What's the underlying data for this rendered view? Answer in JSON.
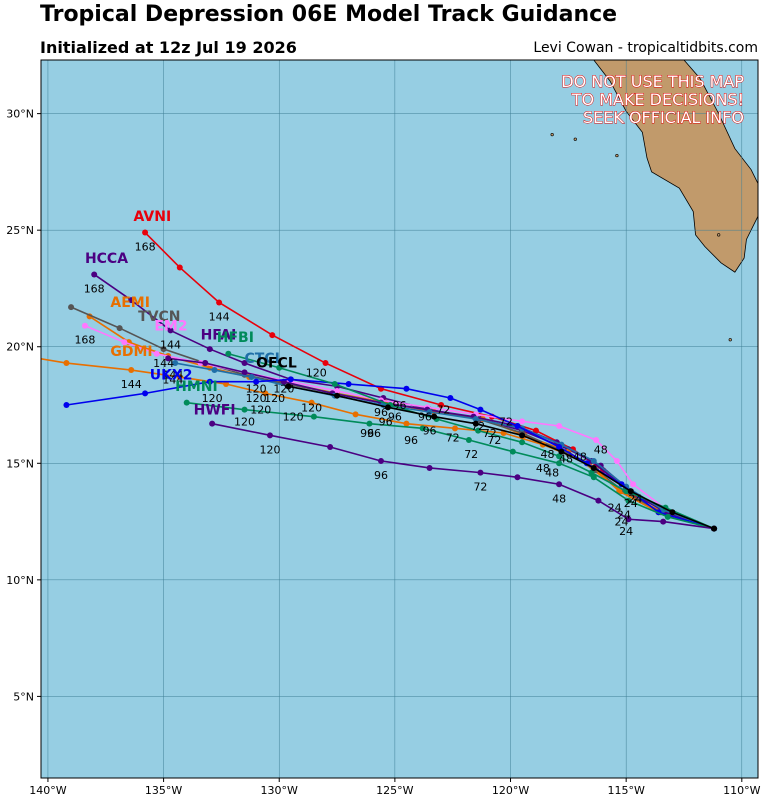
{
  "header": {
    "title": "Tropical Depression 06E Model Track Guidance",
    "subtitle": "Initialized at 12z Jul 19 2026",
    "credit": "Levi Cowan - tropicaltidbits.com"
  },
  "map": {
    "lon_range": [
      -140.3,
      -109.3
    ],
    "lat_range": [
      1.5,
      32.3
    ],
    "ocean_color": "#96cee3",
    "land_color": "#c19a6b",
    "grid": true,
    "lon_ticks": [
      {
        "v": -140,
        "t": "140°W"
      },
      {
        "v": -135,
        "t": "135°W"
      },
      {
        "v": -130,
        "t": "130°W"
      },
      {
        "v": -125,
        "t": "125°W"
      },
      {
        "v": -120,
        "t": "120°W"
      },
      {
        "v": -115,
        "t": "115°W"
      },
      {
        "v": -110,
        "t": "110°W"
      }
    ],
    "lat_ticks": [
      {
        "v": 5,
        "t": "5°N"
      },
      {
        "v": 10,
        "t": "10°N"
      },
      {
        "v": 15,
        "t": "15°N"
      },
      {
        "v": 20,
        "t": "20°N"
      },
      {
        "v": 25,
        "t": "25°N"
      },
      {
        "v": 30,
        "t": "30°N"
      }
    ],
    "warning": [
      "DO NOT USE THIS MAP",
      "TO MAKE DECISIONS!",
      "SEEK OFFICIAL INFO"
    ],
    "land": [
      {
        "name": "baja-california",
        "points": [
          [
            -115.6,
            32.3
          ],
          [
            -112.5,
            32.3
          ],
          [
            -111.8,
            31.5
          ],
          [
            -111.0,
            30.0
          ],
          [
            -110.3,
            28.5
          ],
          [
            -109.6,
            27.6
          ],
          [
            -109.3,
            27.0
          ],
          [
            -109.3,
            25.6
          ],
          [
            -109.8,
            24.6
          ],
          [
            -109.9,
            23.8
          ],
          [
            -110.3,
            23.2
          ],
          [
            -110.9,
            23.6
          ],
          [
            -111.6,
            24.3
          ],
          [
            -112.0,
            24.8
          ],
          [
            -112.1,
            25.8
          ],
          [
            -112.7,
            26.8
          ],
          [
            -113.9,
            27.5
          ],
          [
            -114.1,
            28.1
          ],
          [
            -114.3,
            29.2
          ],
          [
            -115.0,
            30.1
          ],
          [
            -115.7,
            31.4
          ],
          [
            -116.4,
            32.3
          ]
        ]
      }
    ],
    "islands": [
      [
        -117.2,
        28.9
      ],
      [
        -118.2,
        29.1
      ],
      [
        -115.4,
        28.2
      ],
      [
        -111.0,
        24.8
      ],
      [
        -110.5,
        20.3
      ]
    ]
  },
  "tracks": [
    {
      "model": "AVNI",
      "color": "#e8000b",
      "points": [
        [
          -111.2,
          12.2
        ],
        [
          -113.0,
          12.8
        ],
        [
          -114.6,
          13.6
        ],
        [
          -116.0,
          14.7
        ],
        [
          -117.3,
          15.6
        ],
        [
          -118.9,
          16.4
        ],
        [
          -120.8,
          17.0
        ],
        [
          -123.0,
          17.5
        ],
        [
          -125.6,
          18.2
        ],
        [
          -128.0,
          19.3
        ],
        [
          -130.3,
          20.5
        ],
        [
          -132.6,
          21.9
        ],
        [
          -134.3,
          23.4
        ],
        [
          -135.8,
          24.9
        ]
      ],
      "labels": [
        {
          "lon": -132.6,
          "lat": 21.3,
          "t": "144"
        },
        {
          "lon": -135.8,
          "lat": 24.3,
          "t": "168"
        }
      ],
      "name_at": [
        -136.3,
        25.4
      ]
    },
    {
      "model": "HCCA",
      "color": "#4b0082",
      "points": [
        [
          -111.2,
          12.2
        ],
        [
          -113.2,
          12.9
        ],
        [
          -114.8,
          13.8
        ],
        [
          -116.1,
          14.9
        ],
        [
          -117.5,
          15.6
        ],
        [
          -119.5,
          16.4
        ],
        [
          -121.3,
          16.9
        ],
        [
          -123.5,
          17.3
        ],
        [
          -125.5,
          17.8
        ],
        [
          -127.5,
          18.3
        ],
        [
          -129.5,
          18.6
        ],
        [
          -131.5,
          19.3
        ],
        [
          -133.0,
          19.9
        ],
        [
          -134.7,
          20.7
        ],
        [
          -136.4,
          22.0
        ],
        [
          -138.0,
          23.1
        ]
      ],
      "labels": [
        {
          "lon": -134.7,
          "lat": 20.1,
          "t": "144"
        },
        {
          "lon": -138.0,
          "lat": 22.5,
          "t": "168"
        }
      ],
      "name_at": [
        -138.4,
        23.6
      ]
    },
    {
      "model": "AEMI",
      "color": "#e86f00",
      "points": [
        [
          -111.2,
          12.2
        ],
        [
          -113.4,
          12.9
        ],
        [
          -115.2,
          13.8
        ],
        [
          -116.4,
          14.7
        ],
        [
          -117.5,
          15.5
        ],
        [
          -119.4,
          16.2
        ],
        [
          -121.2,
          16.9
        ],
        [
          -123.3,
          17.2
        ],
        [
          -125.4,
          17.6
        ],
        [
          -127.5,
          18.0
        ],
        [
          -129.5,
          18.4
        ],
        [
          -131.3,
          18.7
        ],
        [
          -133.0,
          19.1
        ],
        [
          -134.8,
          19.6
        ],
        [
          -136.5,
          20.2
        ],
        [
          -138.2,
          21.3
        ]
      ],
      "labels": [],
      "name_at": [
        -137.3,
        21.7
      ]
    },
    {
      "model": "TVCN",
      "color": "#555555",
      "points": [
        [
          -111.2,
          12.2
        ],
        [
          -113.5,
          12.9
        ],
        [
          -115.1,
          13.8
        ],
        [
          -116.3,
          14.7
        ],
        [
          -117.5,
          15.4
        ],
        [
          -119.5,
          16.3
        ],
        [
          -121.4,
          16.9
        ],
        [
          -123.5,
          17.3
        ],
        [
          -125.6,
          17.6
        ],
        [
          -127.6,
          18.0
        ],
        [
          -129.7,
          18.4
        ],
        [
          -131.5,
          18.8
        ],
        [
          -133.2,
          19.3
        ],
        [
          -135.0,
          19.9
        ],
        [
          -136.9,
          20.8
        ],
        [
          -139.0,
          21.7
        ]
      ],
      "labels": [
        {
          "lon": -135.0,
          "lat": 19.3,
          "t": "144"
        }
      ],
      "name_at": [
        -136.1,
        21.1
      ]
    },
    {
      "model": "EM2",
      "color": "#ff77ff",
      "points": [
        [
          -111.2,
          12.2
        ],
        [
          -113.1,
          12.9
        ],
        [
          -114.7,
          14.1
        ],
        [
          -115.4,
          15.1
        ],
        [
          -116.3,
          16.0
        ],
        [
          -117.9,
          16.6
        ],
        [
          -119.5,
          16.8
        ],
        [
          -121.5,
          17.1
        ],
        [
          -123.6,
          17.4
        ],
        [
          -125.6,
          17.7
        ],
        [
          -127.5,
          18.1
        ],
        [
          -129.5,
          18.5
        ],
        [
          -131.5,
          18.9
        ],
        [
          -133.4,
          19.3
        ],
        [
          -135.3,
          19.7
        ],
        [
          -136.7,
          20.2
        ],
        [
          -138.4,
          20.9
        ]
      ],
      "labels": [
        {
          "lon": -138.4,
          "lat": 20.3,
          "t": "168"
        }
      ],
      "name_at": [
        -135.4,
        20.7
      ]
    },
    {
      "model": "GDMI",
      "color": "#e86f00",
      "points": [
        [
          -111.2,
          12.2
        ],
        [
          -113.6,
          12.9
        ],
        [
          -115.3,
          13.8
        ],
        [
          -116.6,
          15.0
        ],
        [
          -118.6,
          15.8
        ],
        [
          -120.3,
          16.3
        ],
        [
          -122.4,
          16.5
        ],
        [
          -124.5,
          16.7
        ],
        [
          -126.7,
          17.1
        ],
        [
          -128.6,
          17.6
        ],
        [
          -130.6,
          18.0
        ],
        [
          -132.3,
          18.4
        ],
        [
          -134.3,
          18.7
        ],
        [
          -136.4,
          19.0
        ],
        [
          -139.2,
          19.3
        ],
        [
          -141.0,
          19.6
        ]
      ],
      "labels": [
        {
          "lon": -136.4,
          "lat": 18.4,
          "t": "144"
        }
      ],
      "name_at": [
        -137.3,
        19.6
      ]
    },
    {
      "model": "HFAI",
      "color": "#4b0082",
      "points": [
        [
          -111.2,
          12.2
        ],
        [
          -113.3,
          12.9
        ],
        [
          -115.0,
          13.9
        ],
        [
          -116.5,
          15.1
        ],
        [
          -118.0,
          15.9
        ],
        [
          -119.7,
          16.6
        ],
        [
          -121.6,
          17.0
        ],
        [
          -123.6,
          17.3
        ],
        [
          -125.6,
          17.6
        ],
        [
          -127.7,
          18.0
        ],
        [
          -129.8,
          18.5
        ],
        [
          -131.5,
          18.9
        ],
        [
          -133.2,
          19.3
        ],
        [
          -134.8,
          19.5
        ]
      ],
      "labels": [],
      "name_at": [
        -133.4,
        20.3
      ]
    },
    {
      "model": "CTCI",
      "color": "#1f6fa8",
      "points": [
        [
          -111.2,
          12.2
        ],
        [
          -113.4,
          13.0
        ],
        [
          -115.0,
          14.0
        ],
        [
          -116.4,
          15.1
        ],
        [
          -117.8,
          15.8
        ],
        [
          -119.5,
          16.5
        ],
        [
          -121.5,
          16.9
        ],
        [
          -123.5,
          17.2
        ],
        [
          -125.5,
          17.5
        ],
        [
          -127.6,
          17.9
        ],
        [
          -129.6,
          18.3
        ],
        [
          -131.2,
          18.7
        ],
        [
          -132.8,
          19.0
        ],
        [
          -134.5,
          19.3
        ]
      ],
      "labels": [],
      "name_at": [
        -131.5,
        19.3
      ]
    },
    {
      "model": "UKX2",
      "color": "#0000ee",
      "points": [
        [
          -111.2,
          12.2
        ],
        [
          -113.6,
          12.9
        ],
        [
          -115.2,
          14.1
        ],
        [
          -116.7,
          15.0
        ],
        [
          -117.9,
          15.7
        ],
        [
          -119.7,
          16.6
        ],
        [
          -121.3,
          17.3
        ],
        [
          -122.6,
          17.8
        ],
        [
          -124.5,
          18.2
        ],
        [
          -127.0,
          18.4
        ],
        [
          -129.5,
          18.6
        ],
        [
          -131.0,
          18.5
        ],
        [
          -133.0,
          18.5
        ],
        [
          -135.8,
          18.0
        ],
        [
          -139.2,
          17.5
        ]
      ],
      "labels": [],
      "name_at": [
        -135.6,
        18.6
      ]
    },
    {
      "model": "HMNI",
      "color": "#008b5a",
      "points": [
        [
          -111.2,
          12.2
        ],
        [
          -113.2,
          12.7
        ],
        [
          -114.9,
          13.4
        ],
        [
          -116.4,
          14.4
        ],
        [
          -117.9,
          15.0
        ],
        [
          -119.9,
          15.5
        ],
        [
          -121.8,
          16.0
        ],
        [
          -123.8,
          16.5
        ],
        [
          -126.1,
          16.7
        ],
        [
          -128.5,
          17.0
        ],
        [
          -131.5,
          17.3
        ],
        [
          -134.0,
          17.6
        ]
      ],
      "labels": [
        {
          "lon": -131.5,
          "lat": 16.8,
          "t": "120"
        }
      ],
      "name_at": [
        -134.5,
        18.1
      ]
    },
    {
      "model": "HFBI",
      "color": "#008b5a",
      "points": [
        [
          -111.2,
          12.2
        ],
        [
          -113.3,
          13.1
        ],
        [
          -115.0,
          13.8
        ],
        [
          -116.5,
          14.6
        ],
        [
          -117.9,
          15.3
        ],
        [
          -119.5,
          15.9
        ],
        [
          -121.4,
          16.4
        ],
        [
          -123.2,
          16.9
        ],
        [
          -125.2,
          17.5
        ],
        [
          -127.6,
          18.4
        ],
        [
          -130.0,
          19.1
        ],
        [
          -132.2,
          19.7
        ]
      ],
      "labels": [
        {
          "lon": -128.4,
          "lat": 18.9,
          "t": "120"
        }
      ],
      "name_at": [
        -132.7,
        20.2
      ]
    },
    {
      "model": "HWFI",
      "color": "#4b0082",
      "points": [
        [
          -111.2,
          12.2
        ],
        [
          -113.4,
          12.5
        ],
        [
          -114.9,
          12.6
        ],
        [
          -116.2,
          13.4
        ],
        [
          -117.9,
          14.1
        ],
        [
          -119.7,
          14.4
        ],
        [
          -121.3,
          14.6
        ],
        [
          -123.5,
          14.8
        ],
        [
          -125.6,
          15.1
        ],
        [
          -127.8,
          15.7
        ],
        [
          -130.4,
          16.2
        ],
        [
          -132.9,
          16.7
        ]
      ],
      "labels": [
        {
          "lon": -115.0,
          "lat": 12.1,
          "t": "24"
        },
        {
          "lon": -117.9,
          "lat": 13.5,
          "t": "48"
        },
        {
          "lon": -121.3,
          "lat": 14.0,
          "t": "72"
        },
        {
          "lon": -125.6,
          "lat": 14.5,
          "t": "96"
        },
        {
          "lon": -130.4,
          "lat": 15.6,
          "t": "120"
        }
      ],
      "name_at": [
        -133.7,
        17.1
      ]
    },
    {
      "model": "OFCL",
      "color": "#000000",
      "points": [
        [
          -111.2,
          12.2
        ],
        [
          -113.0,
          12.9
        ],
        [
          -114.8,
          13.8
        ],
        [
          -116.4,
          14.8
        ],
        [
          -117.8,
          15.5
        ],
        [
          -119.5,
          16.2
        ],
        [
          -121.5,
          16.7
        ],
        [
          -123.3,
          17.0
        ],
        [
          -125.3,
          17.4
        ],
        [
          -127.5,
          17.9
        ],
        [
          -129.6,
          18.3
        ]
      ],
      "labels": [],
      "name_at": [
        -131.0,
        19.1
      ]
    }
  ],
  "hour_labels": [
    {
      "lon": -115.5,
      "lat": 13.1,
      "t": "24"
    },
    {
      "lon": -115.1,
      "lat": 12.8,
      "t": "24"
    },
    {
      "lon": -114.8,
      "lat": 13.3,
      "t": "24"
    },
    {
      "lon": -115.2,
      "lat": 12.5,
      "t": "24"
    },
    {
      "lon": -114.6,
      "lat": 13.5,
      "t": "24"
    },
    {
      "lon": -116.1,
      "lat": 15.6,
      "t": "48"
    },
    {
      "lon": -118.4,
      "lat": 15.4,
      "t": "48"
    },
    {
      "lon": -117.6,
      "lat": 15.2,
      "t": "48"
    },
    {
      "lon": -118.6,
      "lat": 14.8,
      "t": "48"
    },
    {
      "lon": -118.2,
      "lat": 14.6,
      "t": "48"
    },
    {
      "lon": -117.0,
      "lat": 15.3,
      "t": "48"
    },
    {
      "lon": -122.5,
      "lat": 16.1,
      "t": "72"
    },
    {
      "lon": -121.4,
      "lat": 16.6,
      "t": "72"
    },
    {
      "lon": -120.9,
      "lat": 16.3,
      "t": "72"
    },
    {
      "lon": -121.7,
      "lat": 15.4,
      "t": "72"
    },
    {
      "lon": -120.7,
      "lat": 16.0,
      "t": "72"
    },
    {
      "lon": -122.9,
      "lat": 17.3,
      "t": "72"
    },
    {
      "lon": -120.2,
      "lat": 16.8,
      "t": "72"
    },
    {
      "lon": -125.6,
      "lat": 17.2,
      "t": "96"
    },
    {
      "lon": -124.8,
      "lat": 17.5,
      "t": "96"
    },
    {
      "lon": -126.2,
      "lat": 16.3,
      "t": "96"
    },
    {
      "lon": -125.9,
      "lat": 16.3,
      "t": "96"
    },
    {
      "lon": -124.3,
      "lat": 16.0,
      "t": "96"
    },
    {
      "lon": -123.5,
      "lat": 16.4,
      "t": "96"
    },
    {
      "lon": -123.7,
      "lat": 17.0,
      "t": "96"
    },
    {
      "lon": -125.4,
      "lat": 16.8,
      "t": "96"
    },
    {
      "lon": -125.0,
      "lat": 17.0,
      "t": "96"
    },
    {
      "lon": -131.0,
      "lat": 17.8,
      "t": "120"
    },
    {
      "lon": -130.2,
      "lat": 17.8,
      "t": "120"
    },
    {
      "lon": -129.8,
      "lat": 18.2,
      "t": "120"
    },
    {
      "lon": -129.4,
      "lat": 17.0,
      "t": "120"
    },
    {
      "lon": -130.8,
      "lat": 17.3,
      "t": "120"
    },
    {
      "lon": -131.0,
      "lat": 18.2,
      "t": "120"
    },
    {
      "lon": -132.9,
      "lat": 17.8,
      "t": "120"
    },
    {
      "lon": -128.6,
      "lat": 17.4,
      "t": "120"
    },
    {
      "lon": -134.6,
      "lat": 18.8,
      "t": "144"
    },
    {
      "lon": -134.6,
      "lat": 18.6,
      "t": "144"
    }
  ]
}
